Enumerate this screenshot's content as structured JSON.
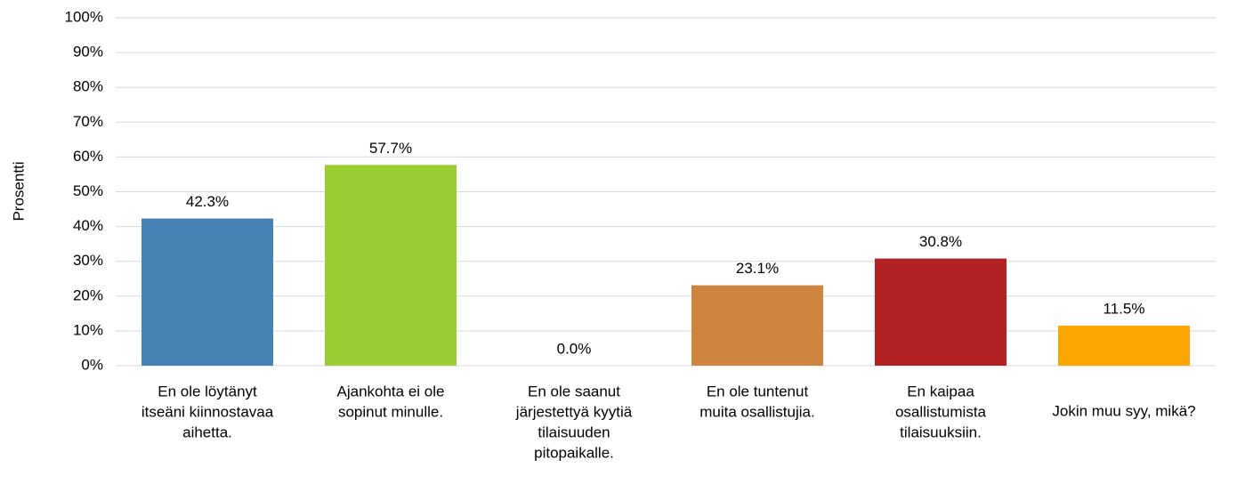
{
  "chart_data": {
    "type": "bar",
    "y_label": "Prosentti",
    "categories": [
      [
        "En ole löytänyt",
        "itseäni kiinnostavaa",
        "aihetta."
      ],
      [
        "Ajankohta ei ole",
        "sopinut minulle."
      ],
      [
        "En ole saanut",
        "järjestettyä kyytiä",
        "tilaisuuden",
        "pitopaikalle."
      ],
      [
        "En ole tuntenut",
        "muita osallistujia."
      ],
      [
        "En kaipaa",
        "osallistumista",
        "tilaisuuksiin."
      ],
      [
        "Jokin muu syy, mikä?"
      ]
    ],
    "values": [
      42.3,
      57.7,
      0.0,
      23.1,
      30.8,
      11.5
    ],
    "value_labels": [
      "42.3%",
      "57.7%",
      "0.0%",
      "23.1%",
      "30.8%",
      "11.5%"
    ],
    "colors": [
      "#4682b4",
      "#9acd32",
      "#6a5acd",
      "#cd853f",
      "#b22222",
      "#ffa500"
    ],
    "ylim": [
      0,
      100
    ],
    "yticks": [
      {
        "value": 0,
        "label": "0%"
      },
      {
        "value": 10,
        "label": "10%"
      },
      {
        "value": 20,
        "label": "20%"
      },
      {
        "value": 30,
        "label": "30%"
      },
      {
        "value": 40,
        "label": "40%"
      },
      {
        "value": 50,
        "label": "50%"
      },
      {
        "value": 60,
        "label": "60%"
      },
      {
        "value": 70,
        "label": "70%"
      },
      {
        "value": 80,
        "label": "80%"
      },
      {
        "value": 90,
        "label": "90%"
      },
      {
        "value": 100,
        "label": "100%"
      }
    ],
    "grid": true
  }
}
